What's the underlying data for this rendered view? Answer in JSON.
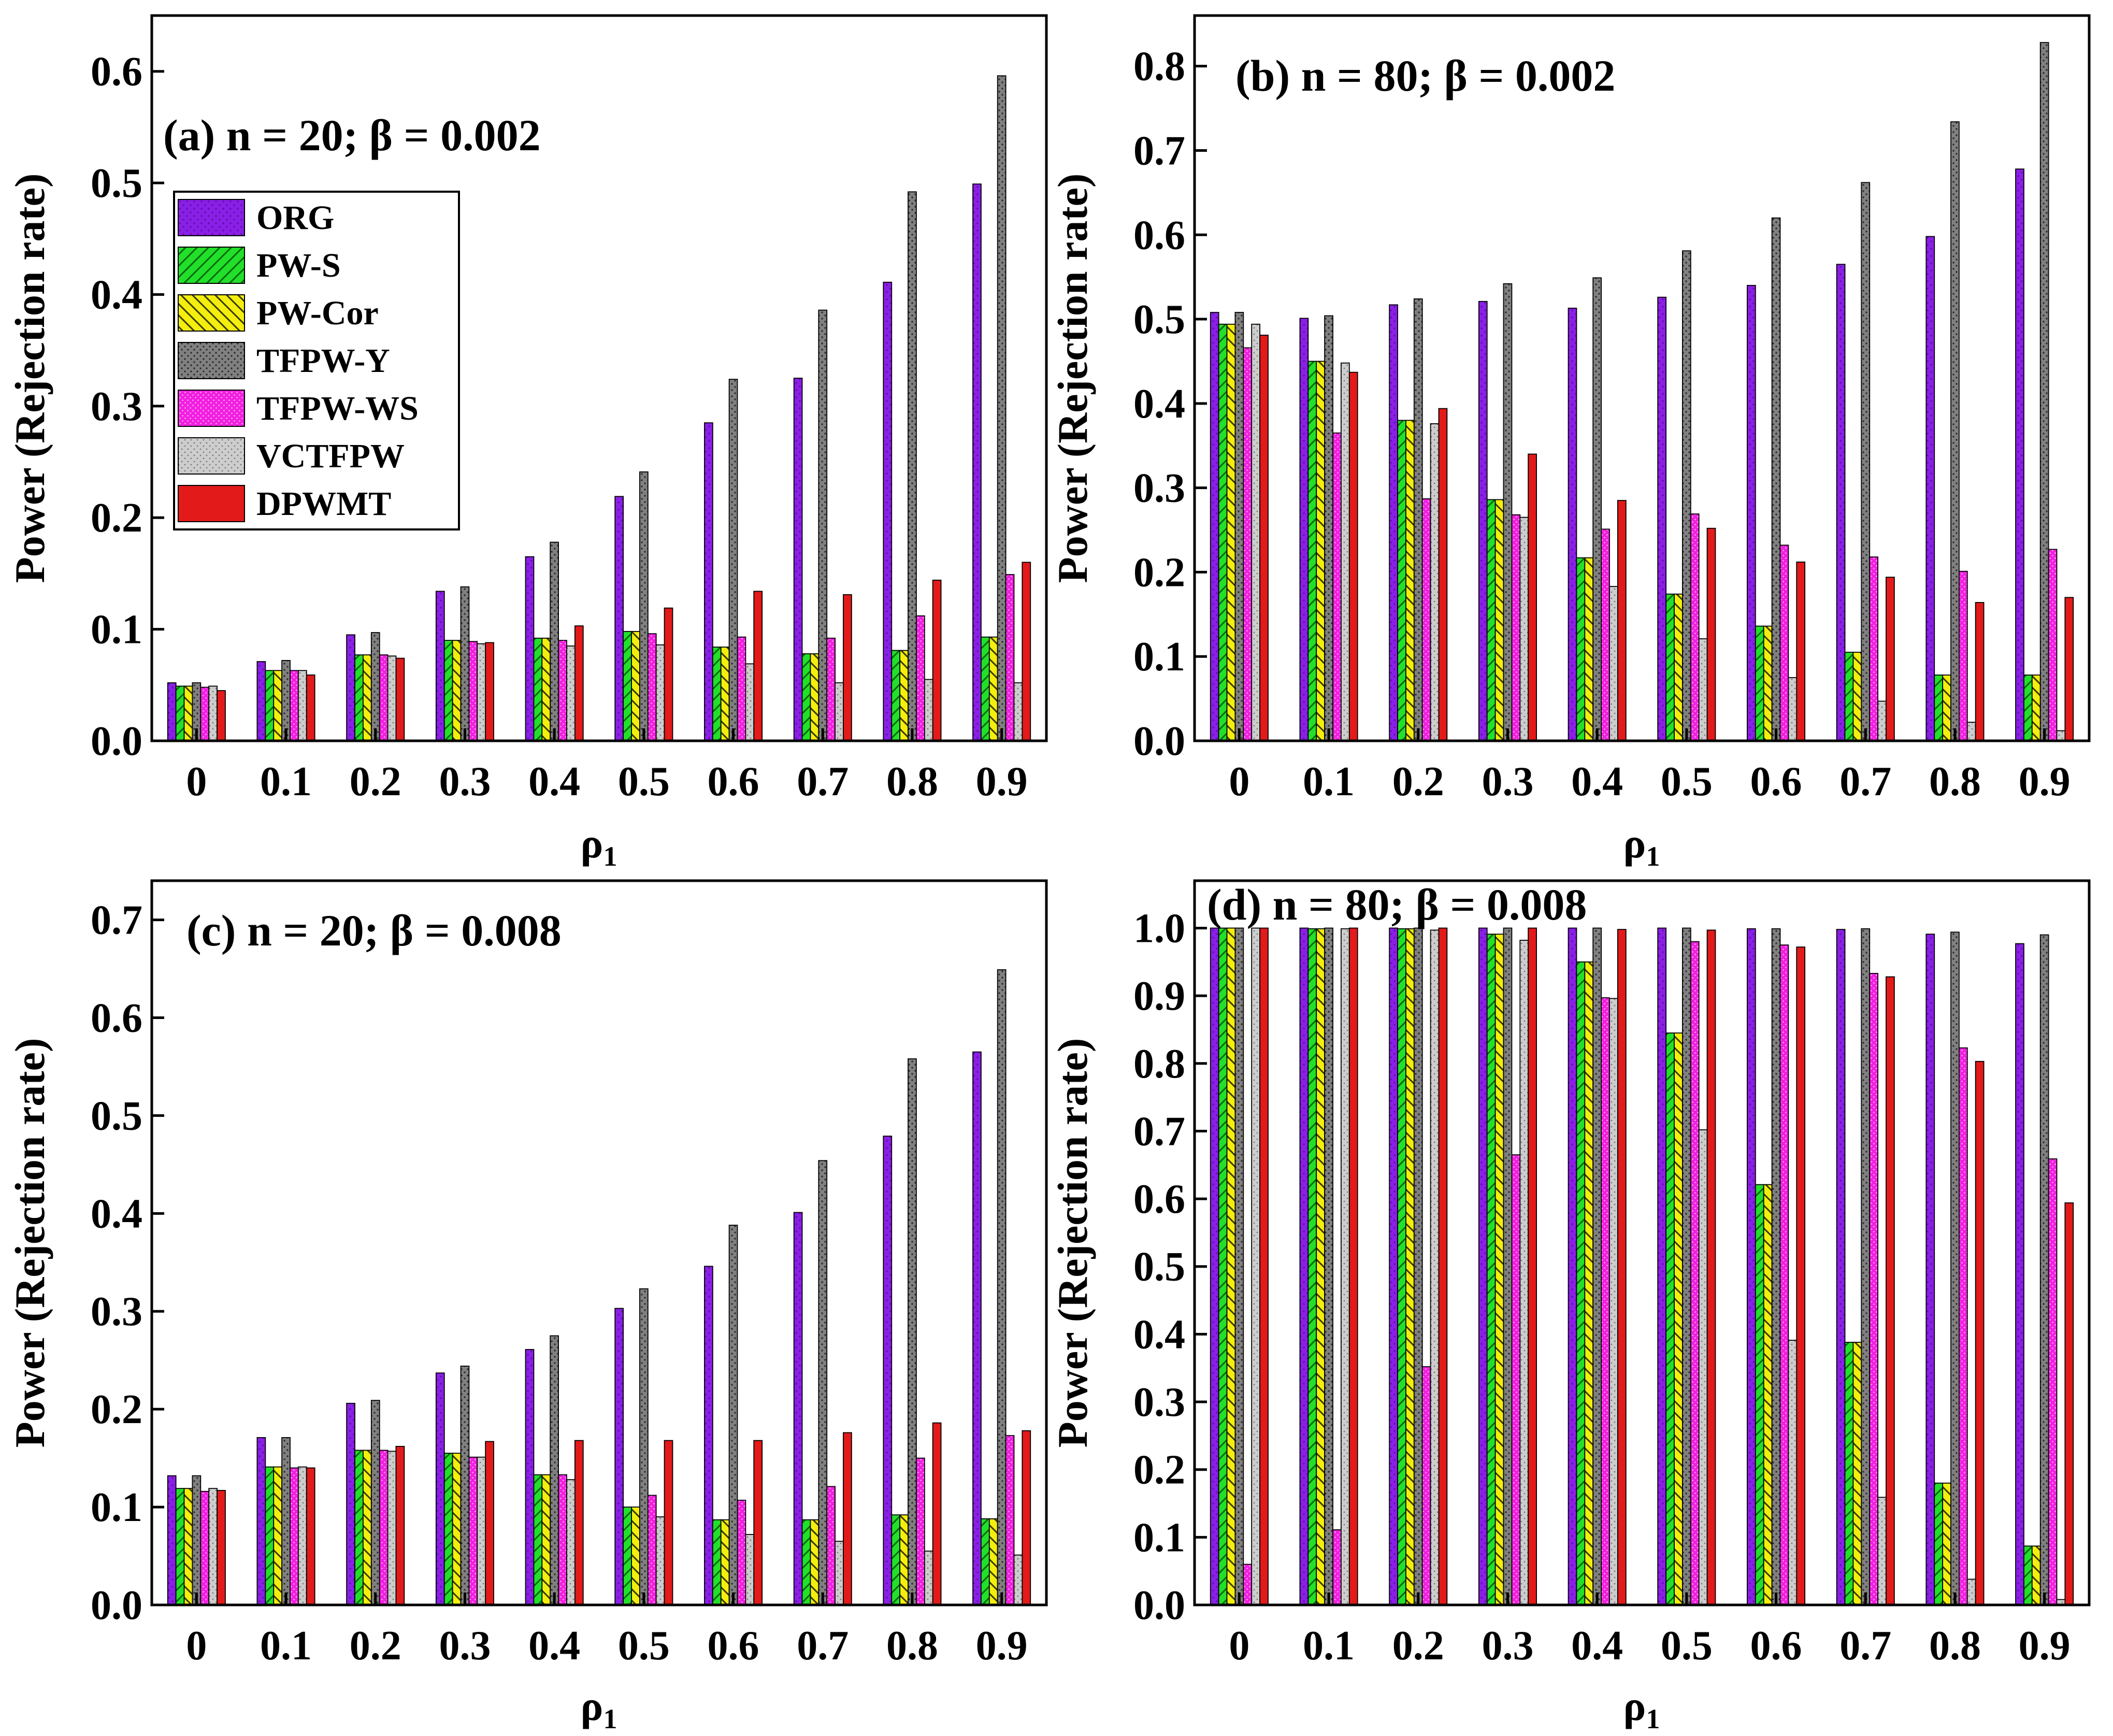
{
  "figure": {
    "legend_labels": [
      "ORG",
      "PW-S",
      "PW-Cor",
      "TFPW-Y",
      "TFPW-WS",
      "VCTFPW",
      "DPWMT"
    ]
  },
  "chart_data": [
    {
      "type": "bar",
      "title": "(a) n = 20; β = 0.002",
      "xlabel": "ρ",
      "xlabel_sub": "1",
      "ylabel": "Power (Rejection rate)",
      "ylim": [
        0,
        0.65
      ],
      "yticks": [
        0.0,
        0.1,
        0.2,
        0.3,
        0.4,
        0.5,
        0.6
      ],
      "ytick_labels": [
        "0.0",
        "0.1",
        "0.2",
        "0.3",
        "0.4",
        "0.5",
        "0.6"
      ],
      "categories": [
        "0",
        "0.1",
        "0.2",
        "0.3",
        "0.4",
        "0.5",
        "0.6",
        "0.7",
        "0.8",
        "0.9"
      ],
      "legend": "upper-left",
      "series": [
        {
          "name": "ORG",
          "values": [
            0.052,
            0.071,
            0.095,
            0.134,
            0.165,
            0.219,
            0.285,
            0.325,
            0.411,
            0.499
          ]
        },
        {
          "name": "PW-S",
          "values": [
            0.049,
            0.063,
            0.077,
            0.09,
            0.092,
            0.098,
            0.084,
            0.078,
            0.081,
            0.093
          ]
        },
        {
          "name": "PW-Cor",
          "values": [
            0.049,
            0.063,
            0.077,
            0.09,
            0.092,
            0.098,
            0.084,
            0.078,
            0.081,
            0.093
          ]
        },
        {
          "name": "TFPW-Y",
          "values": [
            0.052,
            0.072,
            0.097,
            0.138,
            0.178,
            0.241,
            0.324,
            0.386,
            0.492,
            0.596
          ]
        },
        {
          "name": "TFPW-WS",
          "values": [
            0.048,
            0.063,
            0.077,
            0.089,
            0.09,
            0.096,
            0.093,
            0.092,
            0.112,
            0.149
          ]
        },
        {
          "name": "VCTFPW",
          "values": [
            0.049,
            0.063,
            0.076,
            0.087,
            0.085,
            0.086,
            0.069,
            0.052,
            0.055,
            0.052
          ]
        },
        {
          "name": "DPWMT",
          "values": [
            0.045,
            0.059,
            0.074,
            0.088,
            0.103,
            0.119,
            0.134,
            0.131,
            0.144,
            0.16
          ]
        }
      ]
    },
    {
      "type": "bar",
      "title": "(b) n = 80; β = 0.002",
      "xlabel": "ρ",
      "xlabel_sub": "1",
      "ylabel": "Power (Rejection rate)",
      "ylim": [
        0,
        0.86
      ],
      "yticks": [
        0.0,
        0.1,
        0.2,
        0.3,
        0.4,
        0.5,
        0.6,
        0.7,
        0.8
      ],
      "ytick_labels": [
        "0.0",
        "0.1",
        "0.2",
        "0.3",
        "0.4",
        "0.5",
        "0.6",
        "0.7",
        "0.8"
      ],
      "categories": [
        "0",
        "0.1",
        "0.2",
        "0.3",
        "0.4",
        "0.5",
        "0.6",
        "0.7",
        "0.8",
        "0.9"
      ],
      "series": [
        {
          "name": "ORG",
          "values": [
            0.508,
            0.501,
            0.517,
            0.521,
            0.513,
            0.526,
            0.54,
            0.565,
            0.598,
            0.678
          ]
        },
        {
          "name": "PW-S",
          "values": [
            0.494,
            0.45,
            0.38,
            0.286,
            0.217,
            0.174,
            0.136,
            0.105,
            0.078,
            0.078
          ]
        },
        {
          "name": "PW-Cor",
          "values": [
            0.494,
            0.45,
            0.38,
            0.286,
            0.217,
            0.174,
            0.136,
            0.105,
            0.078,
            0.078
          ]
        },
        {
          "name": "TFPW-Y",
          "values": [
            0.508,
            0.504,
            0.524,
            0.542,
            0.549,
            0.581,
            0.62,
            0.662,
            0.734,
            0.828
          ]
        },
        {
          "name": "TFPW-WS",
          "values": [
            0.466,
            0.365,
            0.287,
            0.268,
            0.251,
            0.269,
            0.232,
            0.218,
            0.201,
            0.227
          ]
        },
        {
          "name": "VCTFPW",
          "values": [
            0.494,
            0.448,
            0.376,
            0.265,
            0.183,
            0.121,
            0.075,
            0.047,
            0.022,
            0.012
          ]
        },
        {
          "name": "DPWMT",
          "values": [
            0.481,
            0.437,
            0.394,
            0.34,
            0.285,
            0.252,
            0.212,
            0.194,
            0.164,
            0.17
          ]
        }
      ]
    },
    {
      "type": "bar",
      "title": "(c) n = 20; β = 0.008",
      "xlabel": "ρ",
      "xlabel_sub": "1",
      "ylabel": "Power (Rejection rate)",
      "ylim": [
        0,
        0.74
      ],
      "yticks": [
        0.0,
        0.1,
        0.2,
        0.3,
        0.4,
        0.5,
        0.6,
        0.7
      ],
      "ytick_labels": [
        "0.0",
        "0.1",
        "0.2",
        "0.3",
        "0.4",
        "0.5",
        "0.6",
        "0.7"
      ],
      "categories": [
        "0",
        "0.1",
        "0.2",
        "0.3",
        "0.4",
        "0.5",
        "0.6",
        "0.7",
        "0.8",
        "0.9"
      ],
      "series": [
        {
          "name": "ORG",
          "values": [
            0.132,
            0.171,
            0.206,
            0.237,
            0.261,
            0.303,
            0.346,
            0.401,
            0.479,
            0.565
          ]
        },
        {
          "name": "PW-S",
          "values": [
            0.119,
            0.141,
            0.158,
            0.155,
            0.133,
            0.1,
            0.087,
            0.087,
            0.092,
            0.088
          ]
        },
        {
          "name": "PW-Cor",
          "values": [
            0.119,
            0.141,
            0.158,
            0.155,
            0.133,
            0.1,
            0.087,
            0.087,
            0.092,
            0.088
          ]
        },
        {
          "name": "TFPW-Y",
          "values": [
            0.132,
            0.171,
            0.209,
            0.244,
            0.275,
            0.323,
            0.388,
            0.454,
            0.558,
            0.649
          ]
        },
        {
          "name": "TFPW-WS",
          "values": [
            0.116,
            0.14,
            0.158,
            0.151,
            0.133,
            0.112,
            0.107,
            0.121,
            0.15,
            0.173
          ]
        },
        {
          "name": "VCTFPW",
          "values": [
            0.119,
            0.141,
            0.157,
            0.151,
            0.128,
            0.09,
            0.072,
            0.065,
            0.055,
            0.051
          ]
        },
        {
          "name": "DPWMT",
          "values": [
            0.117,
            0.14,
            0.162,
            0.167,
            0.168,
            0.168,
            0.168,
            0.176,
            0.186,
            0.178
          ]
        }
      ]
    },
    {
      "type": "bar",
      "title": "(d) n = 80; β = 0.008",
      "xlabel": "ρ",
      "xlabel_sub": "1",
      "ylabel": "Power (Rejection rate)",
      "ylim": [
        0,
        1.07
      ],
      "yticks": [
        0.0,
        0.1,
        0.2,
        0.3,
        0.4,
        0.5,
        0.6,
        0.7,
        0.8,
        0.9,
        1.0
      ],
      "ytick_labels": [
        "0.0",
        "0.1",
        "0.2",
        "0.3",
        "0.4",
        "0.5",
        "0.6",
        "0.7",
        "0.8",
        "0.9",
        "1.0"
      ],
      "categories": [
        "0",
        "0.1",
        "0.2",
        "0.3",
        "0.4",
        "0.5",
        "0.6",
        "0.7",
        "0.8",
        "0.9"
      ],
      "series": [
        {
          "name": "ORG",
          "values": [
            1.0,
            1.0,
            1.0,
            1.0,
            1.0,
            1.0,
            0.999,
            0.998,
            0.991,
            0.977
          ]
        },
        {
          "name": "PW-S",
          "values": [
            1.0,
            0.999,
            0.999,
            0.991,
            0.95,
            0.845,
            0.621,
            0.388,
            0.18,
            0.087
          ]
        },
        {
          "name": "PW-Cor",
          "values": [
            1.0,
            0.999,
            0.999,
            0.991,
            0.95,
            0.845,
            0.621,
            0.388,
            0.18,
            0.087
          ]
        },
        {
          "name": "TFPW-Y",
          "values": [
            1.0,
            1.0,
            1.0,
            1.0,
            1.0,
            1.0,
            0.999,
            0.999,
            0.994,
            0.99
          ]
        },
        {
          "name": "TFPW-WS",
          "values": [
            0.06,
            0.111,
            0.352,
            0.665,
            0.897,
            0.98,
            0.975,
            0.933,
            0.823,
            0.659
          ]
        },
        {
          "name": "VCTFPW",
          "values": [
            1.0,
            0.999,
            0.997,
            0.982,
            0.896,
            0.702,
            0.391,
            0.159,
            0.038,
            0.008
          ]
        },
        {
          "name": "DPWMT",
          "values": [
            1.0,
            1.0,
            1.0,
            1.0,
            0.998,
            0.997,
            0.972,
            0.928,
            0.803,
            0.594
          ]
        }
      ]
    }
  ]
}
